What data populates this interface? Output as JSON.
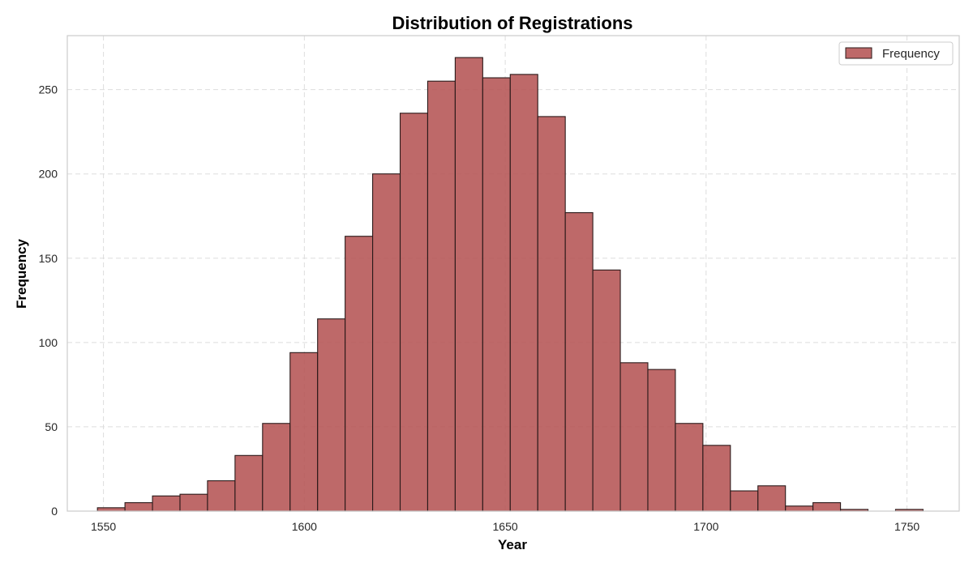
{
  "chart_data": {
    "type": "bar",
    "title": "Distribution of Registrations",
    "xlabel": "Year",
    "ylabel": "Frequency",
    "xlim": [
      1541,
      1763
    ],
    "ylim": [
      0,
      282
    ],
    "xticks": [
      1550,
      1600,
      1650,
      1700,
      1750
    ],
    "yticks": [
      0,
      50,
      100,
      150,
      200,
      250
    ],
    "bin_start": 1548.5,
    "bin_width": 6.85,
    "values": [
      2,
      5,
      9,
      10,
      18,
      33,
      52,
      94,
      114,
      163,
      200,
      236,
      255,
      269,
      257,
      259,
      234,
      177,
      143,
      88,
      84,
      52,
      39,
      12,
      15,
      3,
      5,
      1,
      0,
      1
    ],
    "series": [
      {
        "name": "Frequency"
      }
    ],
    "legend": {
      "position": "top-right"
    },
    "grid": true,
    "colors": {
      "bar_fill": "#b55454",
      "bar_edge": "#2b1a1a",
      "grid": "#dddddd",
      "axis": "#cccccc"
    }
  }
}
